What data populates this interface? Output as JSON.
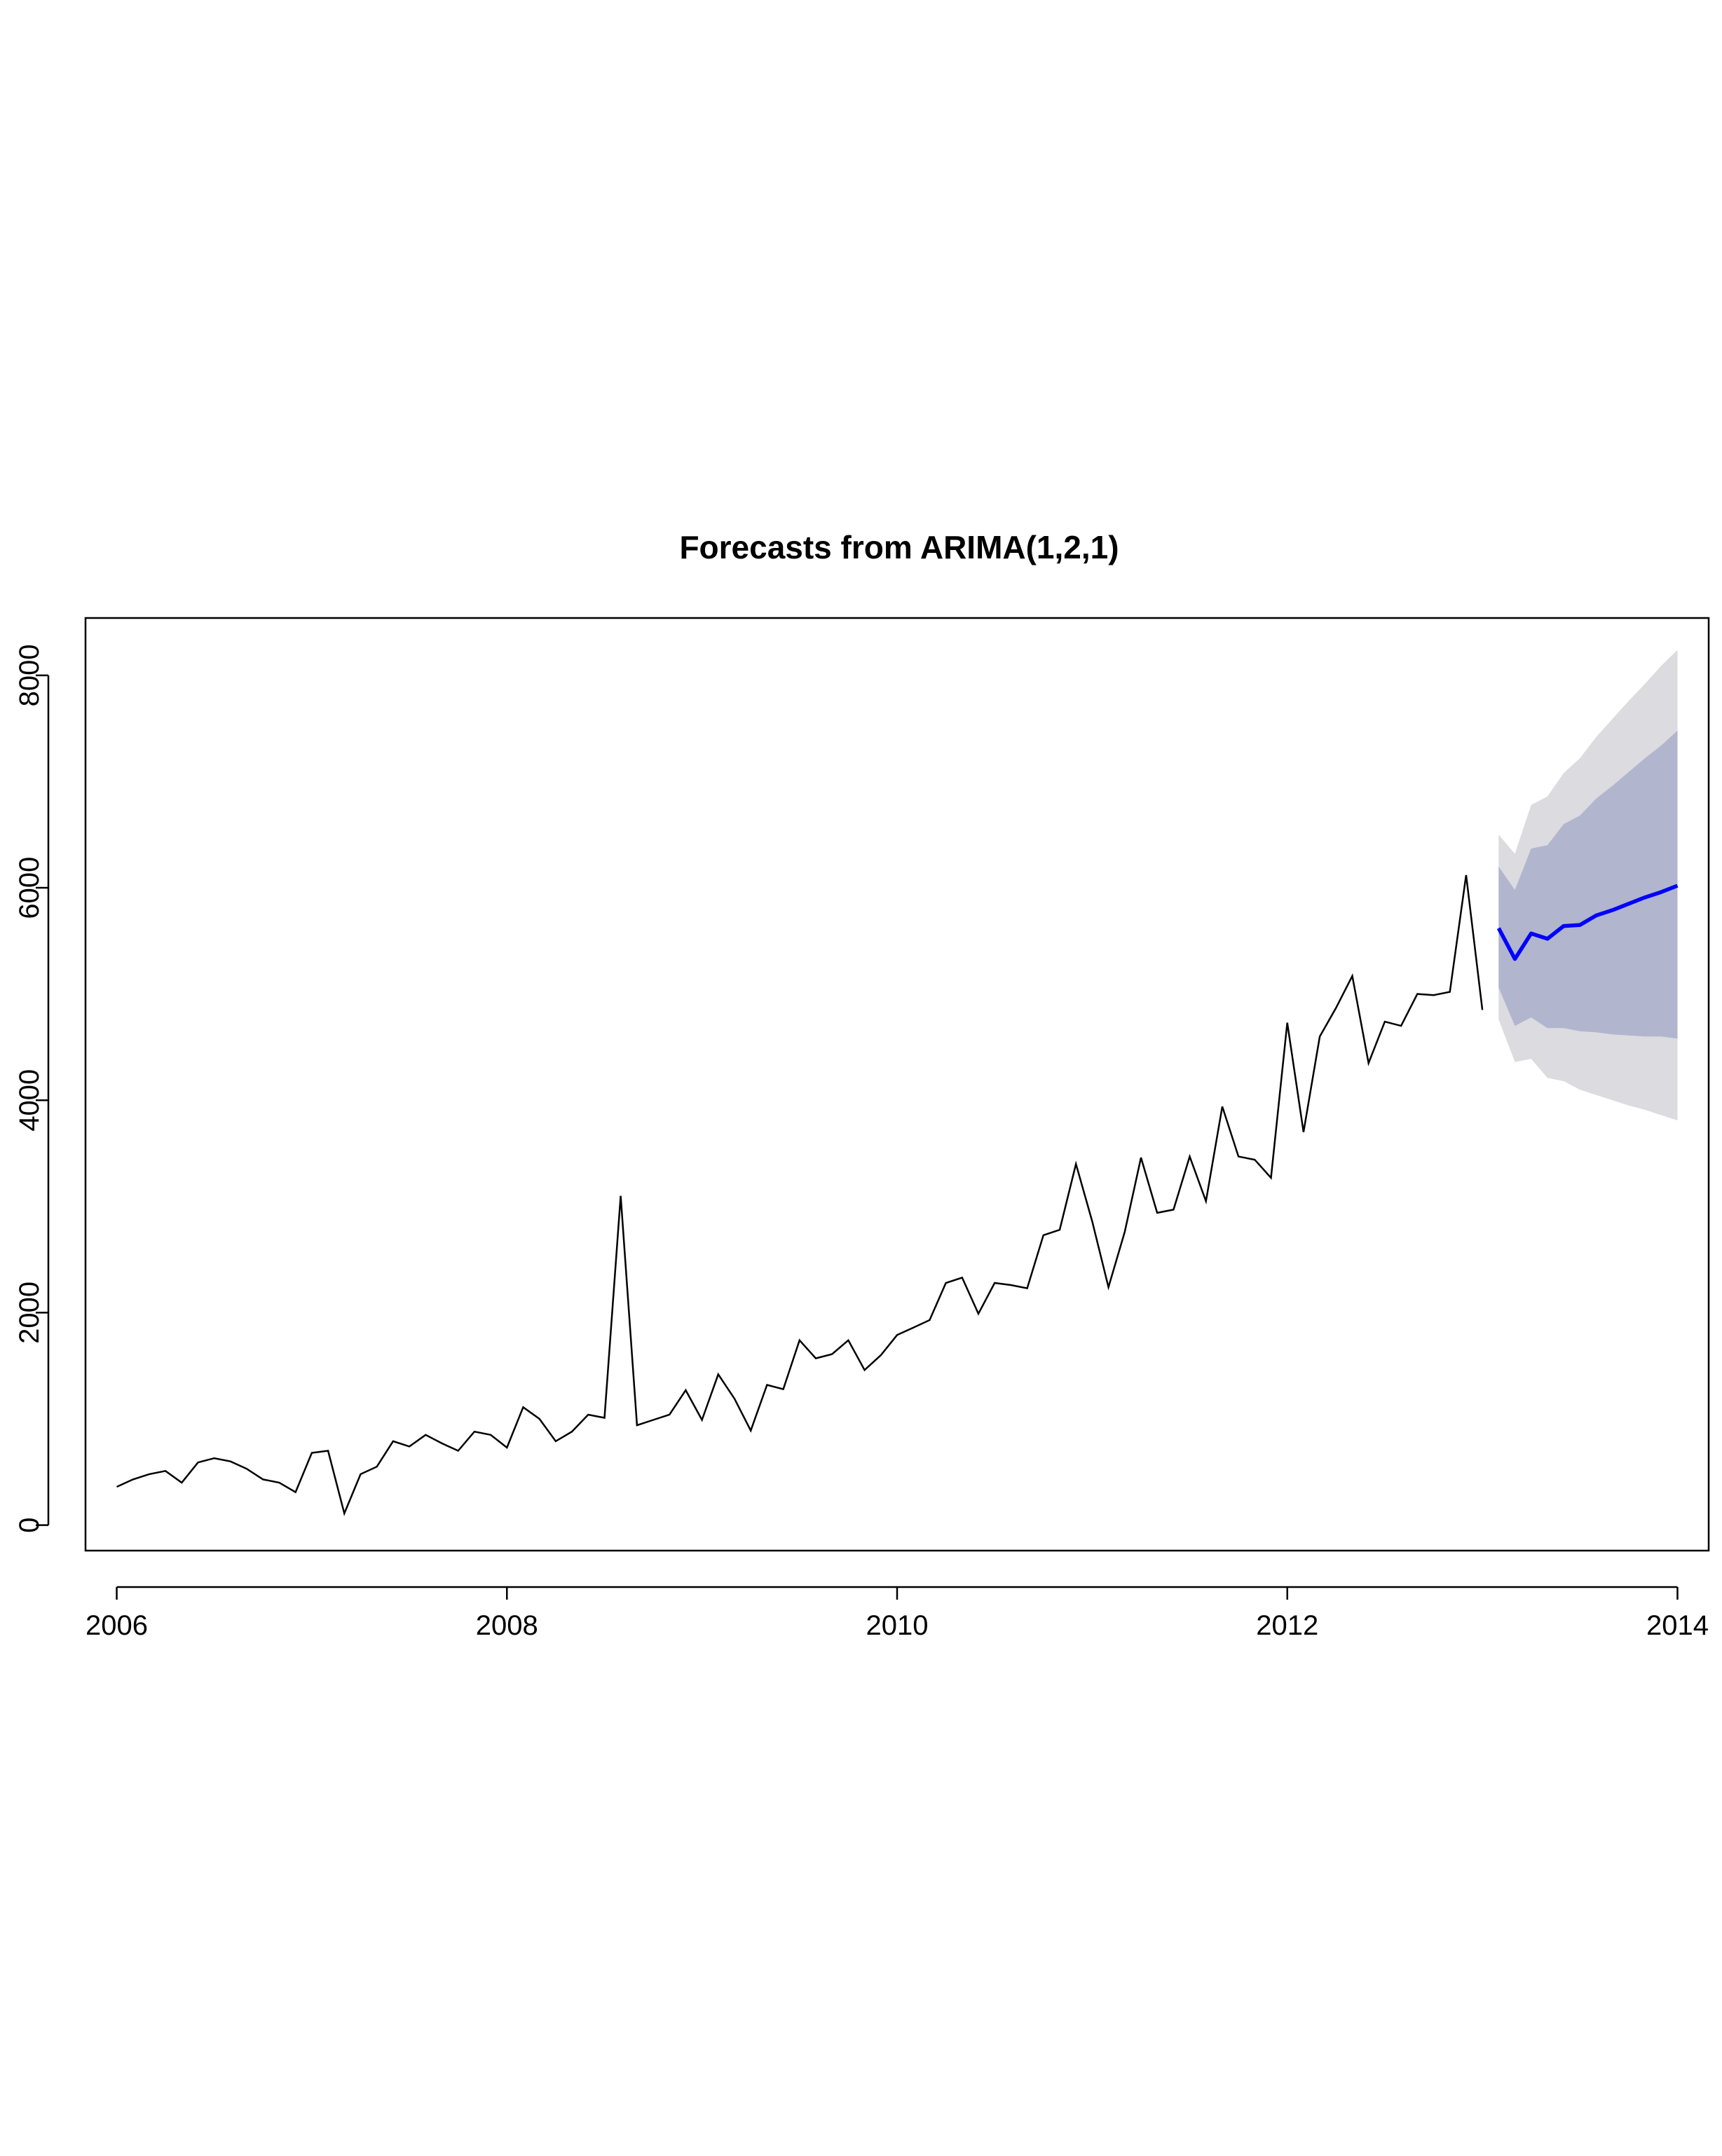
{
  "chart_data": {
    "type": "line",
    "title": "Forecasts from ARIMA(1,2,1)",
    "xlabel": "",
    "ylabel": "",
    "xlim": [
      2005.84,
      2014.16
    ],
    "ylim": [
      -240,
      8540
    ],
    "x_ticks": [
      2006,
      2008,
      2010,
      2012,
      2014
    ],
    "x_tick_labels": [
      "2006",
      "2008",
      "2010",
      "2012",
      "2014"
    ],
    "y_ticks": [
      0,
      2000,
      4000,
      6000,
      8000
    ],
    "y_tick_labels": [
      "0",
      "2000",
      "4000",
      "6000",
      "8000"
    ],
    "grid": false,
    "legend": "none",
    "colors": {
      "observed": "#000000",
      "forecast": "#0000ff",
      "band80": "#b1b5ce",
      "band95": "#dbdbe0",
      "box": "#000000"
    },
    "series": [
      {
        "role": "observed",
        "x": [
          2006.0,
          2006.0833,
          2006.1667,
          2006.25,
          2006.3333,
          2006.4167,
          2006.5,
          2006.5833,
          2006.6667,
          2006.75,
          2006.8333,
          2006.9167,
          2007.0,
          2007.0833,
          2007.1667,
          2007.25,
          2007.3333,
          2007.4167,
          2007.5,
          2007.5833,
          2007.6667,
          2007.75,
          2007.8333,
          2007.9167,
          2008.0,
          2008.0833,
          2008.1667,
          2008.25,
          2008.3333,
          2008.4167,
          2008.5,
          2008.5833,
          2008.6667,
          2008.75,
          2008.8333,
          2008.9167,
          2009.0,
          2009.0833,
          2009.1667,
          2009.25,
          2009.3333,
          2009.4167,
          2009.5,
          2009.5833,
          2009.6667,
          2009.75,
          2009.8333,
          2009.9167,
          2010.0,
          2010.0833,
          2010.1667,
          2010.25,
          2010.3333,
          2010.4167,
          2010.5,
          2010.5833,
          2010.6667,
          2010.75,
          2010.8333,
          2010.9167,
          2011.0,
          2011.0833,
          2011.1667,
          2011.25,
          2011.3333,
          2011.4167,
          2011.5,
          2011.5833,
          2011.6667,
          2011.75,
          2011.8333,
          2011.9167,
          2012.0,
          2012.0833,
          2012.1667,
          2012.25,
          2012.3333,
          2012.4167,
          2012.5,
          2012.5833,
          2012.6667,
          2012.75,
          2012.8333,
          2012.9167,
          2013.0
        ],
        "values": [
          360,
          430,
          480,
          510,
          400,
          590,
          630,
          600,
          530,
          430,
          400,
          310,
          680,
          700,
          110,
          480,
          550,
          790,
          740,
          850,
          770,
          700,
          880,
          850,
          730,
          1110,
          1000,
          790,
          880,
          1040,
          1010,
          3100,
          940,
          990,
          1040,
          1270,
          990,
          1420,
          1190,
          890,
          1320,
          1280,
          1740,
          1570,
          1610,
          1740,
          1460,
          1600,
          1790,
          1860,
          1930,
          2280,
          2330,
          1990,
          2280,
          2260,
          2230,
          2730,
          2780,
          3400,
          2860,
          2240,
          2760,
          3460,
          2940,
          2970,
          3470,
          3050,
          3940,
          3470,
          3440,
          3270,
          4730,
          3700,
          4600,
          4870,
          5170,
          4350,
          4740,
          4700,
          5000,
          4990,
          5020,
          6120,
          4850
        ]
      },
      {
        "role": "forecast",
        "x": [
          2013.0833,
          2013.1667,
          2013.25,
          2013.3333,
          2013.4167,
          2013.5,
          2013.5833,
          2013.6667,
          2013.75,
          2013.8333,
          2013.9167,
          2014.0
        ],
        "values": [
          5620,
          5330,
          5570,
          5520,
          5640,
          5650,
          5740,
          5790,
          5850,
          5910,
          5960,
          6020
        ],
        "lo80": [
          5060,
          4700,
          4780,
          4680,
          4680,
          4650,
          4640,
          4620,
          4610,
          4600,
          4600,
          4580
        ],
        "hi80": [
          6200,
          5980,
          6370,
          6400,
          6600,
          6680,
          6840,
          6960,
          7090,
          7220,
          7340,
          7480
        ],
        "lo95": [
          4760,
          4360,
          4390,
          4210,
          4180,
          4100,
          4050,
          4000,
          3950,
          3910,
          3860,
          3810
        ],
        "hi95": [
          6500,
          6320,
          6780,
          6860,
          7080,
          7220,
          7420,
          7590,
          7760,
          7920,
          8090,
          8240
        ]
      }
    ]
  }
}
